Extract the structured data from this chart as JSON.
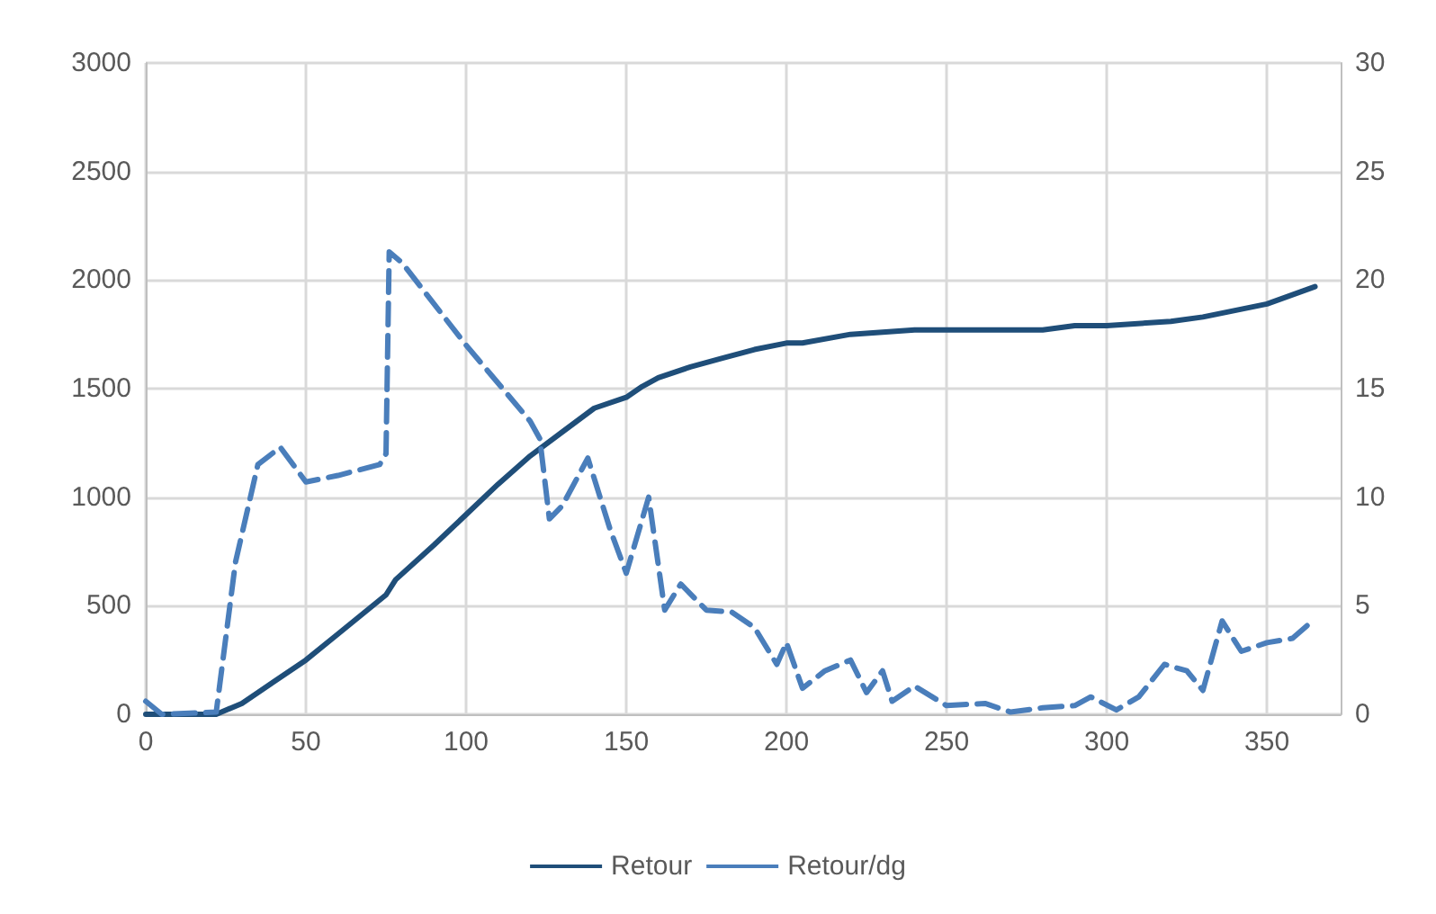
{
  "chart_data": {
    "type": "line",
    "xlim": [
      0,
      373
    ],
    "xticks": [
      0,
      50,
      100,
      150,
      200,
      250,
      300,
      350
    ],
    "ylim": [
      0,
      3000
    ],
    "yticks": [
      0,
      500,
      1000,
      1500,
      2000,
      2500,
      3000
    ],
    "y2lim": [
      0,
      30
    ],
    "y2ticks": [
      0,
      5,
      10,
      15,
      20,
      25,
      30
    ],
    "grid": true,
    "legend": "bottom",
    "marker": "none",
    "series": [
      {
        "name": "Retour",
        "color": "#1f4e79",
        "line_style": "solid",
        "x": [
          0,
          22,
          30,
          40,
          50,
          60,
          70,
          75,
          78,
          90,
          100,
          110,
          120,
          130,
          140,
          150,
          155,
          160,
          170,
          180,
          190,
          200,
          205,
          220,
          230,
          240,
          280,
          290,
          300,
          320,
          330,
          340,
          350,
          365
        ],
        "values": [
          0,
          0,
          50,
          150,
          250,
          370,
          490,
          550,
          620,
          780,
          920,
          1060,
          1190,
          1300,
          1410,
          1460,
          1510,
          1550,
          1600,
          1640,
          1680,
          1710,
          1710,
          1750,
          1760,
          1770,
          1770,
          1790,
          1790,
          1810,
          1830,
          1860,
          1890,
          1970
        ]
      },
      {
        "name": "Retour/dg",
        "color": "#4a7ebb",
        "line_style": "dashed",
        "axis": "y2",
        "x": [
          0,
          5,
          22,
          28,
          35,
          42,
          50,
          60,
          73,
          75,
          76,
          80,
          100,
          120,
          123,
          126,
          130,
          138,
          145,
          150,
          157,
          162,
          167,
          175,
          183,
          190,
          197,
          200,
          205,
          212,
          220,
          225,
          230,
          233,
          240,
          250,
          262,
          270,
          280,
          290,
          295,
          303,
          310,
          318,
          325,
          330,
          336,
          342,
          350,
          358,
          365
        ],
        "values": [
          0.6,
          0,
          0.1,
          7,
          11.5,
          12.3,
          10.7,
          11,
          11.5,
          12,
          21.3,
          20.8,
          17,
          13.5,
          12.7,
          9,
          9.6,
          11.8,
          8.5,
          6.5,
          10,
          4.8,
          6,
          4.8,
          4.7,
          4,
          2.3,
          3.3,
          1.2,
          2,
          2.5,
          1,
          2,
          0.6,
          1.3,
          0.4,
          0.5,
          0.1,
          0.3,
          0.4,
          0.8,
          0.2,
          0.8,
          2.3,
          2,
          1.1,
          4.3,
          2.9,
          3.3,
          3.5,
          4.4
        ]
      }
    ]
  }
}
